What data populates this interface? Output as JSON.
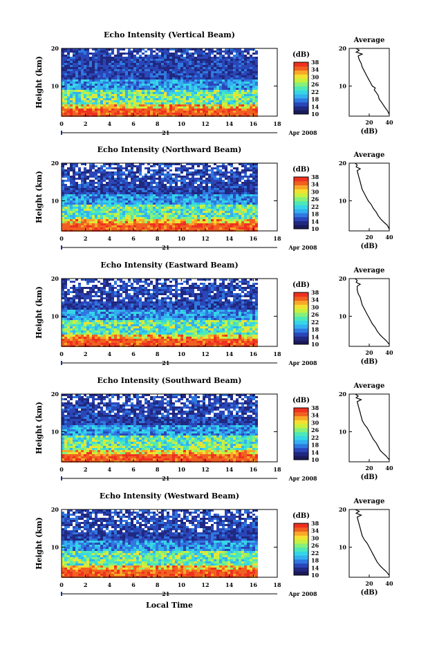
{
  "chart_data": [
    {
      "type": "heatmap",
      "title": "Echo Intensity (Vertical Beam)",
      "ylabel": "Height (km)",
      "x_ticks": [
        "0",
        "2",
        "4",
        "6",
        "8",
        "10",
        "12",
        "14",
        "16",
        "18"
      ],
      "xlim": [
        0,
        18
      ],
      "y_ticks": [
        "10",
        "20"
      ],
      "ylim": [
        2,
        20
      ],
      "date_label": "21",
      "month_year": "Apr 2008",
      "colorbar": {
        "label": "(dB)",
        "ticks": [
          "10",
          "14",
          "18",
          "22",
          "26",
          "30",
          "34",
          "38"
        ],
        "range": [
          10,
          38
        ]
      },
      "average_profile": {
        "title": "Average",
        "xlabel": "(dB)",
        "x_ticks": [
          "20",
          "40"
        ],
        "y_ticks": [
          "10",
          "20"
        ],
        "points": [
          [
            40,
            2.5
          ],
          [
            38,
            3.5
          ],
          [
            36,
            4.2
          ],
          [
            34,
            5
          ],
          [
            32,
            5.8
          ],
          [
            30,
            6.5
          ],
          [
            29,
            7.5
          ],
          [
            27,
            8.3
          ],
          [
            25,
            9
          ],
          [
            26,
            9.5
          ],
          [
            23,
            10
          ],
          [
            21,
            11
          ],
          [
            19,
            12
          ],
          [
            17,
            13
          ],
          [
            15,
            14
          ],
          [
            13,
            15
          ],
          [
            12,
            16
          ],
          [
            10,
            17
          ],
          [
            9,
            18
          ],
          [
            13,
            18.5
          ],
          [
            7,
            19
          ],
          [
            10,
            19.5
          ],
          [
            7,
            20
          ]
        ]
      }
    },
    {
      "type": "heatmap",
      "title": "Echo Intensity (Northward Beam)",
      "ylabel": "Height (km)",
      "x_ticks": [
        "0",
        "2",
        "4",
        "6",
        "8",
        "10",
        "12",
        "14",
        "16",
        "18"
      ],
      "xlim": [
        0,
        18
      ],
      "y_ticks": [
        "10",
        "20"
      ],
      "ylim": [
        2,
        20
      ],
      "date_label": "21",
      "month_year": "Apr 2008",
      "colorbar": {
        "label": "(dB)",
        "ticks": [
          "10",
          "14",
          "18",
          "22",
          "26",
          "30",
          "34",
          "38"
        ],
        "range": [
          10,
          38
        ]
      },
      "average_profile": {
        "title": "Average",
        "xlabel": "(dB)",
        "x_ticks": [
          "20",
          "40"
        ],
        "y_ticks": [
          "10",
          "20"
        ],
        "points": [
          [
            40,
            2.5
          ],
          [
            38,
            3.5
          ],
          [
            35,
            4.2
          ],
          [
            32,
            5
          ],
          [
            29,
            6
          ],
          [
            27,
            7
          ],
          [
            24,
            8
          ],
          [
            22,
            9
          ],
          [
            19,
            10
          ],
          [
            17,
            11
          ],
          [
            15,
            12
          ],
          [
            13,
            13
          ],
          [
            12,
            14
          ],
          [
            11,
            15
          ],
          [
            10,
            16
          ],
          [
            9,
            17
          ],
          [
            8,
            18
          ],
          [
            11,
            18.5
          ],
          [
            7,
            19
          ],
          [
            8,
            19.5
          ],
          [
            6,
            20
          ]
        ]
      }
    },
    {
      "type": "heatmap",
      "title": "Echo Intensity (Eastward Beam)",
      "ylabel": "Height (km)",
      "x_ticks": [
        "0",
        "2",
        "4",
        "6",
        "8",
        "10",
        "12",
        "14",
        "16",
        "18"
      ],
      "xlim": [
        0,
        18
      ],
      "y_ticks": [
        "10",
        "20"
      ],
      "ylim": [
        2,
        20
      ],
      "date_label": "21",
      "month_year": "Apr 2008",
      "colorbar": {
        "label": "(dB)",
        "ticks": [
          "10",
          "14",
          "18",
          "22",
          "26",
          "30",
          "34",
          "38"
        ],
        "range": [
          10,
          38
        ]
      },
      "average_profile": {
        "title": "Average",
        "xlabel": "(dB)",
        "x_ticks": [
          "20",
          "40"
        ],
        "y_ticks": [
          "10",
          "20"
        ],
        "points": [
          [
            40,
            2.5
          ],
          [
            37,
            3.5
          ],
          [
            34,
            4.2
          ],
          [
            31,
            5
          ],
          [
            28,
            6
          ],
          [
            26,
            7
          ],
          [
            23,
            8
          ],
          [
            21,
            9
          ],
          [
            19,
            10
          ],
          [
            17,
            11
          ],
          [
            15,
            12
          ],
          [
            13,
            13
          ],
          [
            12,
            14
          ],
          [
            11,
            15
          ],
          [
            9,
            16
          ],
          [
            8,
            17
          ],
          [
            8,
            18
          ],
          [
            11,
            18.5
          ],
          [
            7,
            19
          ],
          [
            8,
            19.5
          ],
          [
            6,
            20
          ]
        ]
      }
    },
    {
      "type": "heatmap",
      "title": "Echo Intensity (Southward Beam)",
      "ylabel": "Height (km)",
      "x_ticks": [
        "0",
        "2",
        "4",
        "6",
        "8",
        "10",
        "12",
        "14",
        "16",
        "18"
      ],
      "xlim": [
        0,
        18
      ],
      "y_ticks": [
        "10",
        "20"
      ],
      "ylim": [
        2,
        20
      ],
      "date_label": "21",
      "month_year": "Apr 2008",
      "colorbar": {
        "label": "(dB)",
        "ticks": [
          "10",
          "14",
          "18",
          "22",
          "26",
          "30",
          "34",
          "38"
        ],
        "range": [
          10,
          38
        ]
      },
      "average_profile": {
        "title": "Average",
        "xlabel": "(dB)",
        "x_ticks": [
          "20",
          "40"
        ],
        "y_ticks": [
          "10",
          "20"
        ],
        "points": [
          [
            40,
            2.5
          ],
          [
            37,
            3.5
          ],
          [
            34,
            4.2
          ],
          [
            31,
            5
          ],
          [
            29,
            6
          ],
          [
            27,
            7
          ],
          [
            24,
            8
          ],
          [
            22,
            9
          ],
          [
            20,
            10
          ],
          [
            18,
            11
          ],
          [
            15,
            12
          ],
          [
            13,
            13
          ],
          [
            12,
            14
          ],
          [
            11,
            15
          ],
          [
            10,
            16
          ],
          [
            9,
            17
          ],
          [
            8,
            18
          ],
          [
            12,
            18.5
          ],
          [
            7,
            19
          ],
          [
            9,
            19.5
          ],
          [
            6,
            20
          ]
        ]
      }
    },
    {
      "type": "heatmap",
      "title": "Echo Intensity (Westward Beam)",
      "ylabel": "Height (km)",
      "x_ticks": [
        "0",
        "2",
        "4",
        "6",
        "8",
        "10",
        "12",
        "14",
        "16",
        "18"
      ],
      "xlim": [
        0,
        18
      ],
      "y_ticks": [
        "10",
        "20"
      ],
      "ylim": [
        2,
        20
      ],
      "date_label": "21",
      "month_year": "Apr 2008",
      "colorbar": {
        "label": "(dB)",
        "ticks": [
          "10",
          "14",
          "18",
          "22",
          "26",
          "30",
          "34",
          "38"
        ],
        "range": [
          10,
          38
        ]
      },
      "average_profile": {
        "title": "Average",
        "xlabel": "(dB)",
        "x_ticks": [
          "20",
          "40"
        ],
        "y_ticks": [
          "10",
          "20"
        ],
        "points": [
          [
            40,
            2.5
          ],
          [
            37,
            3.5
          ],
          [
            34,
            4.2
          ],
          [
            31,
            5
          ],
          [
            28,
            6
          ],
          [
            26,
            7
          ],
          [
            24,
            8
          ],
          [
            22,
            9
          ],
          [
            20,
            10
          ],
          [
            18,
            11
          ],
          [
            15,
            12
          ],
          [
            13,
            13
          ],
          [
            12,
            14
          ],
          [
            11,
            15
          ],
          [
            10,
            16
          ],
          [
            9,
            17
          ],
          [
            8,
            18
          ],
          [
            12,
            18.5
          ],
          [
            7,
            19
          ],
          [
            10,
            19.5
          ],
          [
            6,
            20
          ]
        ]
      }
    }
  ],
  "xlabel": "Local Time",
  "colormap": [
    "#1a1a5a",
    "#202880",
    "#2a46b8",
    "#2f78e0",
    "#33b0f0",
    "#36d6e6",
    "#4ee8b8",
    "#86f07a",
    "#c8f040",
    "#f4e030",
    "#f8a828",
    "#f06020",
    "#f03020"
  ]
}
